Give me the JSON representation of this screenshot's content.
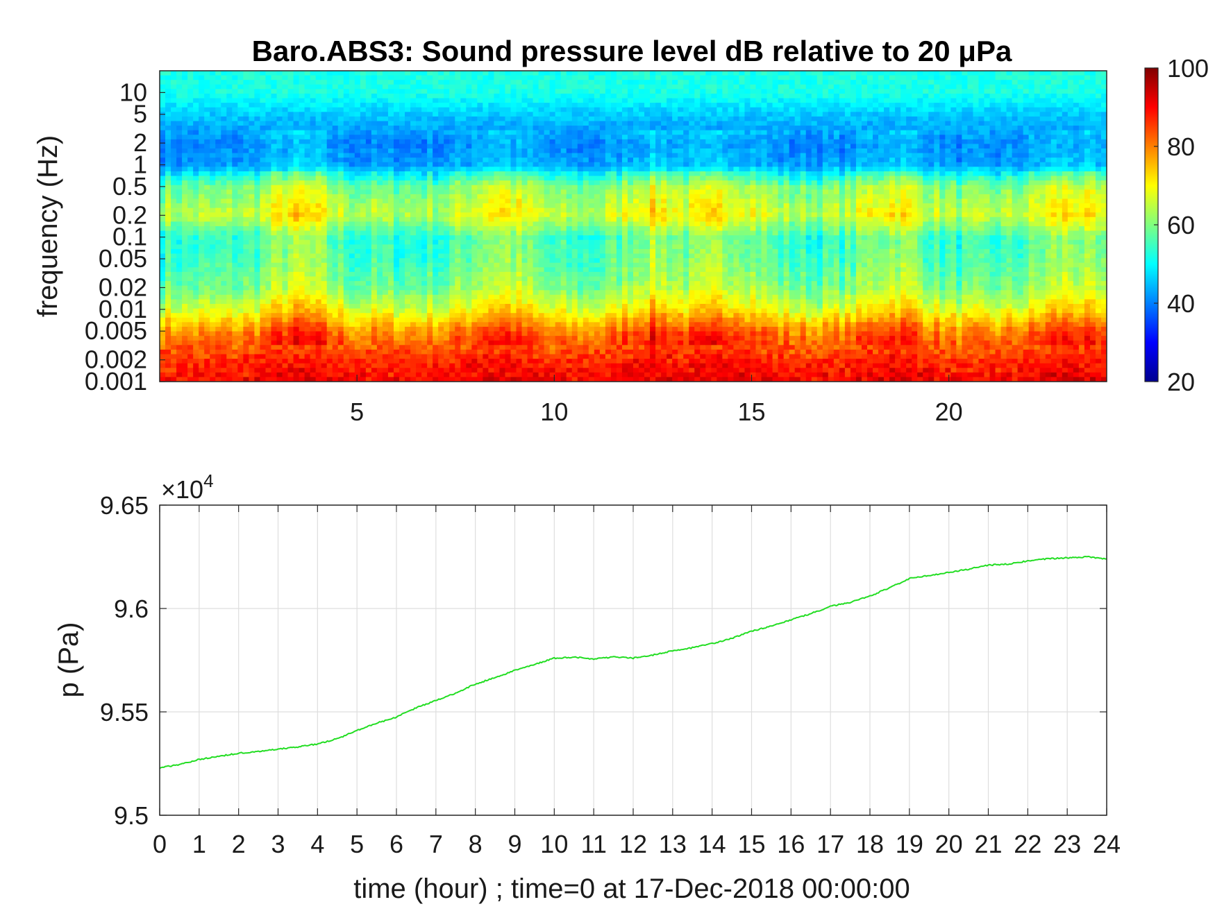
{
  "chart_data": [
    {
      "type": "heatmap",
      "title": "Baro.ABS3: Sound pressure level dB relative to 20 μPa",
      "ylabel": "frequency (Hz)",
      "xlabel": "",
      "y_scale": "log",
      "xlim": [
        0,
        24
      ],
      "ylim": [
        0.001,
        20
      ],
      "x_ticks": [
        "5",
        "10",
        "15",
        "20"
      ],
      "x_tick_values": [
        5,
        10,
        15,
        20
      ],
      "y_ticks": [
        "0.001",
        "0.002",
        "0.005",
        "0.01",
        "0.02",
        "0.05",
        "0.1",
        "0.2",
        "0.5",
        "1",
        "2",
        "5",
        "10"
      ],
      "y_tick_values": [
        0.001,
        0.002,
        0.005,
        0.01,
        0.02,
        0.05,
        0.1,
        0.2,
        0.5,
        1,
        2,
        5,
        10
      ],
      "colormap": "jet",
      "colorbar": {
        "range": [
          20,
          100
        ],
        "ticks": [
          "20",
          "40",
          "60",
          "80",
          "100"
        ],
        "tick_values": [
          20,
          40,
          60,
          80,
          100
        ]
      },
      "band_levels_db": [
        {
          "freq_hz": 0.001,
          "db": 90
        },
        {
          "freq_hz": 0.002,
          "db": 86
        },
        {
          "freq_hz": 0.005,
          "db": 78
        },
        {
          "freq_hz": 0.01,
          "db": 66
        },
        {
          "freq_hz": 0.02,
          "db": 58
        },
        {
          "freq_hz": 0.05,
          "db": 54
        },
        {
          "freq_hz": 0.1,
          "db": 53
        },
        {
          "freq_hz": 0.2,
          "db": 64
        },
        {
          "freq_hz": 0.5,
          "db": 58
        },
        {
          "freq_hz": 1,
          "db": 42
        },
        {
          "freq_hz": 2,
          "db": 40
        },
        {
          "freq_hz": 5,
          "db": 46
        },
        {
          "freq_hz": 10,
          "db": 52
        },
        {
          "freq_hz": 20,
          "db": 52
        }
      ],
      "activity_peaks_hour": [
        3.5,
        8.6,
        12.5,
        14.5,
        18.6,
        23
      ]
    },
    {
      "type": "line",
      "ylabel": "p (Pa)",
      "xlabel": "time (hour) ; time=0 at 17-Dec-2018 00:00:00",
      "y_exponent_label": "×10",
      "y_exponent_power": "4",
      "xlim": [
        0,
        24
      ],
      "ylim": [
        95000,
        96500
      ],
      "grid": true,
      "x_ticks": [
        "0",
        "1",
        "2",
        "3",
        "4",
        "5",
        "6",
        "7",
        "8",
        "9",
        "10",
        "11",
        "12",
        "13",
        "14",
        "15",
        "16",
        "17",
        "18",
        "19",
        "20",
        "21",
        "22",
        "23",
        "24"
      ],
      "x_tick_values": [
        0,
        1,
        2,
        3,
        4,
        5,
        6,
        7,
        8,
        9,
        10,
        11,
        12,
        13,
        14,
        15,
        16,
        17,
        18,
        19,
        20,
        21,
        22,
        23,
        24
      ],
      "y_ticks": [
        "9.5",
        "9.55",
        "9.6",
        "9.65"
      ],
      "y_tick_values": [
        95000,
        95500,
        96000,
        96500
      ],
      "series": [
        {
          "color": "#22dd22",
          "x": [
            0,
            0.5,
            1,
            1.5,
            2,
            2.5,
            3,
            3.5,
            4,
            4.5,
            5,
            5.5,
            6,
            6.5,
            7,
            7.5,
            8,
            8.5,
            9,
            9.5,
            10,
            10.5,
            11,
            11.5,
            12,
            12.5,
            13,
            13.5,
            14,
            14.5,
            15,
            15.5,
            16,
            16.5,
            17,
            17.5,
            18,
            18.5,
            19,
            19.5,
            20,
            20.5,
            21,
            21.5,
            22,
            22.5,
            23,
            23.5,
            24
          ],
          "y": [
            95230,
            95245,
            95270,
            95285,
            95300,
            95308,
            95320,
            95330,
            95345,
            95370,
            95410,
            95445,
            95475,
            95520,
            95555,
            95590,
            95635,
            95665,
            95700,
            95730,
            95760,
            95765,
            95755,
            95765,
            95760,
            95775,
            95795,
            95810,
            95830,
            95855,
            95890,
            95915,
            95945,
            95975,
            96010,
            96030,
            96060,
            96100,
            96145,
            96160,
            96175,
            96190,
            96210,
            96215,
            96230,
            96240,
            96245,
            96250,
            96240
          ]
        }
      ]
    }
  ]
}
